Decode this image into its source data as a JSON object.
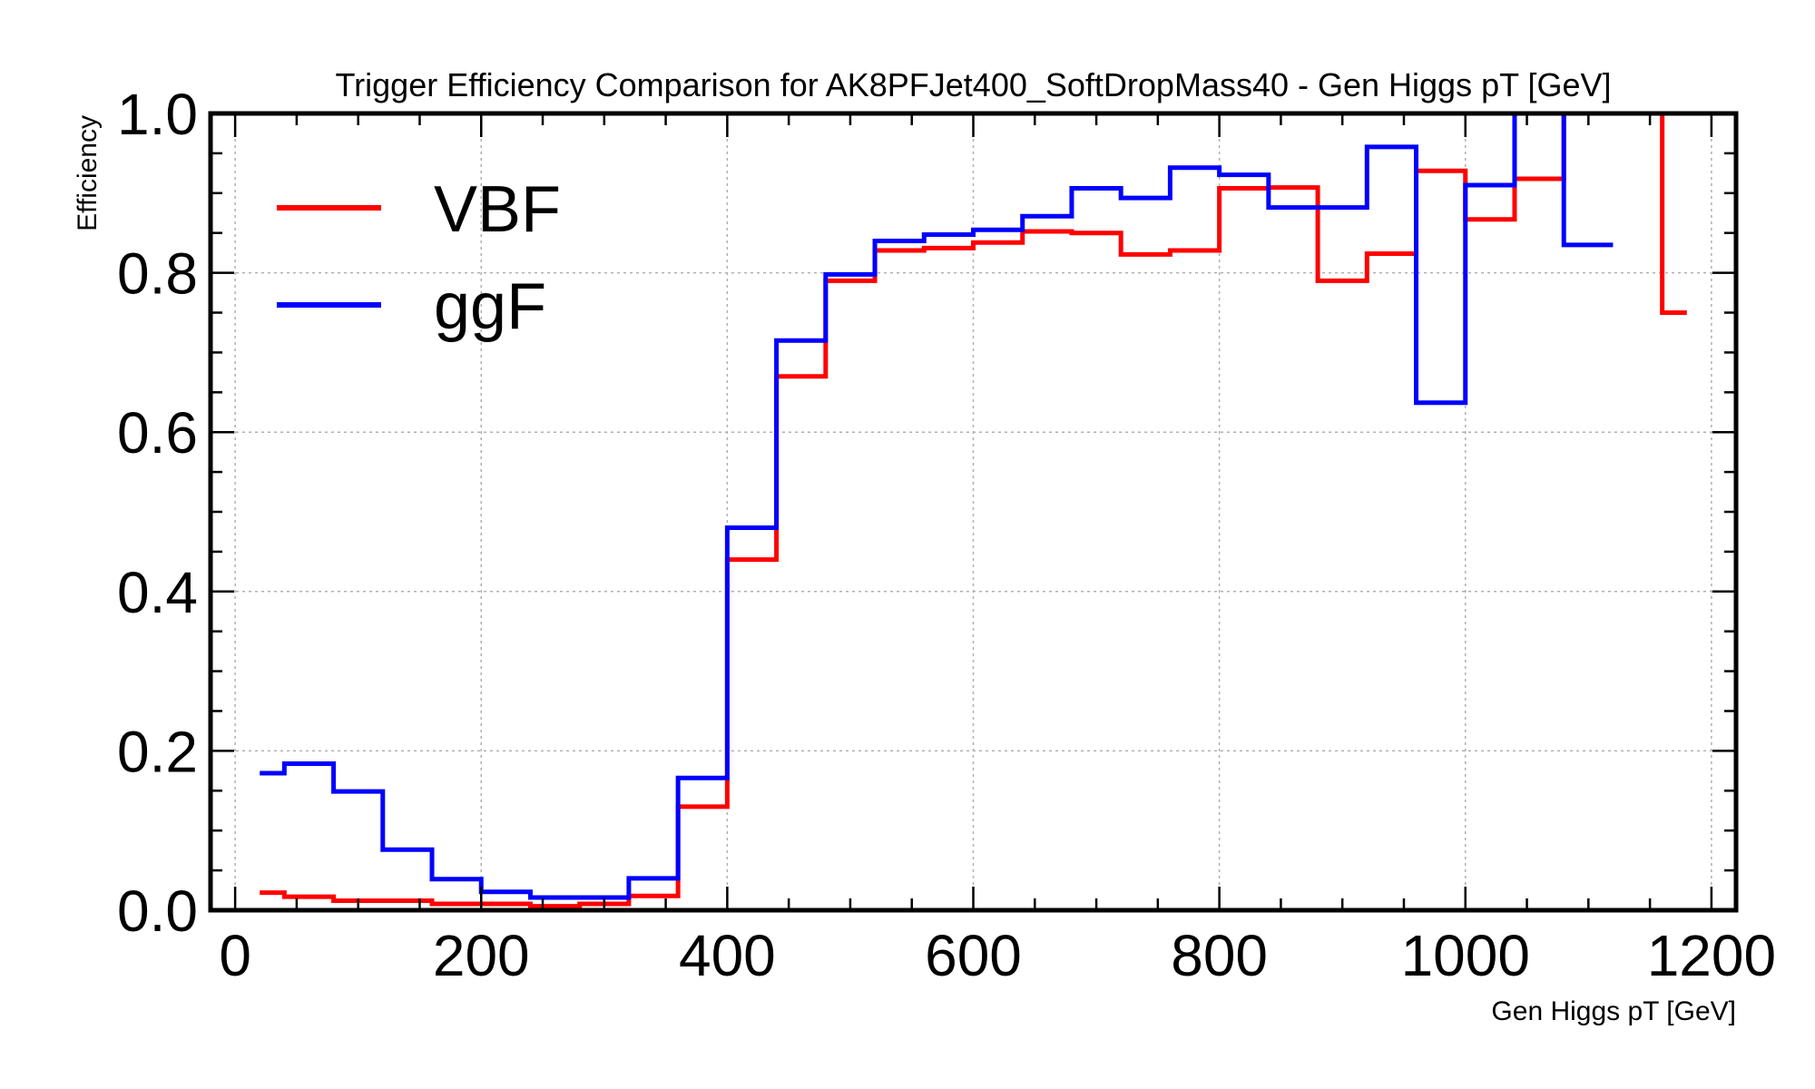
{
  "chart_data": {
    "type": "line",
    "title": "Trigger Efficiency Comparison for AK8PFJet400_SoftDropMass40 - Gen Higgs pT [GeV]",
    "xlabel": "Gen Higgs pT [GeV]",
    "ylabel": "Efficiency",
    "xlim": [
      -20,
      1220
    ],
    "ylim": [
      0,
      1.0
    ],
    "x_ticks": [
      "0",
      "200",
      "400",
      "600",
      "800",
      "1000",
      "1200"
    ],
    "y_ticks": [
      "0.0",
      "0.2",
      "0.4",
      "0.6",
      "0.8",
      "1.0"
    ],
    "grid": true,
    "legend_position": "top-left",
    "step_style": "histogram",
    "series": [
      {
        "name": "VBF",
        "color": "#ff0000",
        "x": [
          20,
          40,
          80,
          120,
          160,
          200,
          240,
          280,
          320,
          360,
          400,
          440,
          480,
          520,
          560,
          600,
          640,
          680,
          720,
          760,
          800,
          840,
          880,
          920,
          960,
          1000,
          1040,
          1080,
          1120,
          1160,
          1180
        ],
        "values": [
          0.022,
          0.017,
          0.012,
          0.012,
          0.008,
          0.008,
          0.005,
          0.008,
          0.018,
          0.13,
          0.44,
          0.67,
          0.79,
          0.828,
          0.831,
          0.838,
          0.852,
          0.85,
          0.823,
          0.828,
          0.906,
          0.907,
          0.79,
          0.824,
          0.928,
          0.867,
          0.918,
          1.0,
          1.0,
          0.75,
          null
        ]
      },
      {
        "name": "ggF",
        "color": "#0000ff",
        "x": [
          20,
          40,
          80,
          120,
          160,
          200,
          240,
          280,
          320,
          360,
          400,
          440,
          480,
          520,
          560,
          600,
          640,
          680,
          720,
          760,
          800,
          840,
          880,
          920,
          960,
          1000,
          1040,
          1080,
          1120
        ],
        "values": [
          0.172,
          0.184,
          0.149,
          0.076,
          0.039,
          0.023,
          0.016,
          0.016,
          0.04,
          0.166,
          0.48,
          0.715,
          0.798,
          0.84,
          0.848,
          0.854,
          0.871,
          0.906,
          0.894,
          0.932,
          0.923,
          0.882,
          0.882,
          0.958,
          0.637,
          0.91,
          1.0,
          0.835,
          null
        ]
      }
    ]
  }
}
